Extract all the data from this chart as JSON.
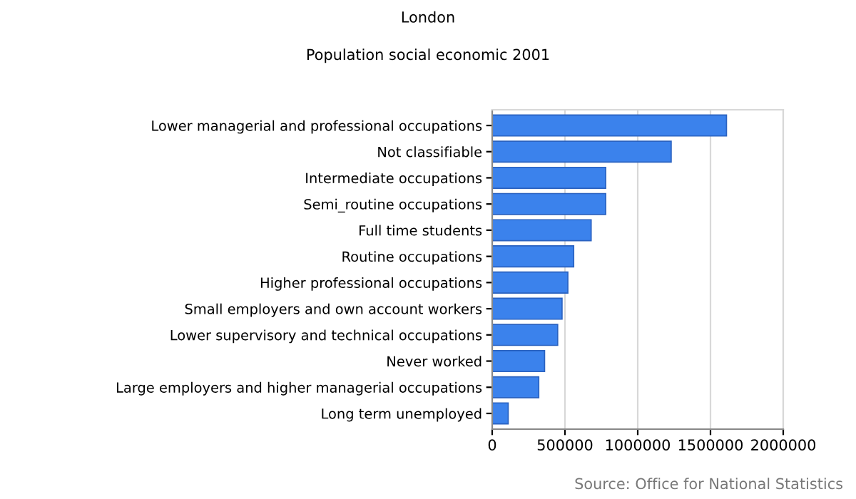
{
  "chart_data": {
    "type": "bar",
    "orientation": "horizontal",
    "title": "London",
    "subtitle": "Population social economic 2001",
    "categories": [
      "Lower managerial and professional occupations",
      "Not classifiable",
      "Intermediate occupations",
      "Semi_routine occupations",
      "Full time students",
      "Routine occupations",
      "Higher professional occupations",
      "Small employers and own account workers",
      "Lower supervisory and technical occupations",
      "Never worked",
      "Large employers and higher managerial occupations",
      "Long term unemployed"
    ],
    "values": [
      1610000,
      1230000,
      780000,
      780000,
      680000,
      560000,
      520000,
      480000,
      450000,
      360000,
      320000,
      110000
    ],
    "color": "#3b82ec",
    "xlim": [
      0,
      2000000
    ],
    "xticks": [
      0,
      500000,
      1000000,
      1500000,
      2000000
    ],
    "grid": "x",
    "legend": false,
    "annotations": [
      "Source: Office for National Statistics"
    ]
  }
}
